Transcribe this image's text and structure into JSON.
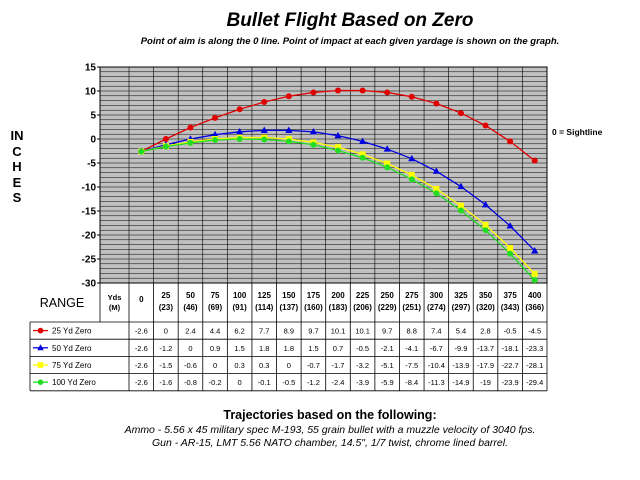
{
  "chart_data": {
    "type": "line",
    "title": "Bullet Flight Based on Zero",
    "subtitle": "Point of aim is along the 0 line. Point of impact at each given yardage is shown on the graph.",
    "ylabel": "INCHES",
    "xlabel": "RANGE",
    "annotation": "0 = Sightline",
    "ylim": [
      -30,
      15
    ],
    "yticks": [
      15,
      10,
      5,
      0,
      -5,
      -10,
      -15,
      -20,
      -25,
      -30
    ],
    "grid": true,
    "table_header_label": "Yds (M)",
    "categories": [
      "0",
      "25 (23)",
      "50 (46)",
      "75 (69)",
      "100 (91)",
      "125 (114)",
      "150 (137)",
      "175 (160)",
      "200 (183)",
      "225 (206)",
      "250 (229)",
      "275 (251)",
      "300 (274)",
      "325 (297)",
      "350 (320)",
      "375 (343)",
      "400 (366)"
    ],
    "series": [
      {
        "name": "25 Yd Zero",
        "color": "#e00000",
        "marker": "circle",
        "values": [
          -2.6,
          0,
          2.4,
          4.4,
          6.2,
          7.7,
          8.9,
          9.7,
          10.1,
          10.1,
          9.7,
          8.8,
          7.4,
          5.4,
          2.8,
          -0.5,
          -4.5
        ]
      },
      {
        "name": "50 Yd Zero",
        "color": "#0000e0",
        "marker": "triangle",
        "values": [
          -2.6,
          -1.2,
          0,
          0.9,
          1.5,
          1.8,
          1.8,
          1.5,
          0.7,
          -0.5,
          -2.1,
          -4.1,
          -6.7,
          -9.9,
          -13.7,
          -18.1,
          -23.3
        ]
      },
      {
        "name": "75 Yd Zero",
        "color": "#ffff00",
        "marker": "square",
        "values": [
          -2.6,
          -1.5,
          -0.6,
          0,
          0.3,
          0.3,
          0,
          -0.7,
          -1.7,
          -3.2,
          -5.1,
          -7.5,
          -10.4,
          -13.9,
          -17.9,
          -22.7,
          -28.1
        ]
      },
      {
        "name": "100 Yd Zero",
        "color": "#22dd22",
        "marker": "circle",
        "values": [
          -2.6,
          -1.6,
          -0.8,
          -0.2,
          0,
          -0.1,
          -0.5,
          -1.2,
          -2.4,
          -3.9,
          -5.9,
          -8.4,
          -11.3,
          -14.9,
          -19,
          -23.9,
          -29.4
        ]
      }
    ]
  },
  "footer": {
    "title": "Trajectories based on the following:",
    "line1": "Ammo - 5.56 x 45 military spec M-193, 55 grain bullet with a muzzle velocity of 3040 fps.",
    "line2": "Gun - AR-15, LMT 5.56 NATO chamber, 14.5\", 1/7 twist, chrome lined barrel."
  }
}
